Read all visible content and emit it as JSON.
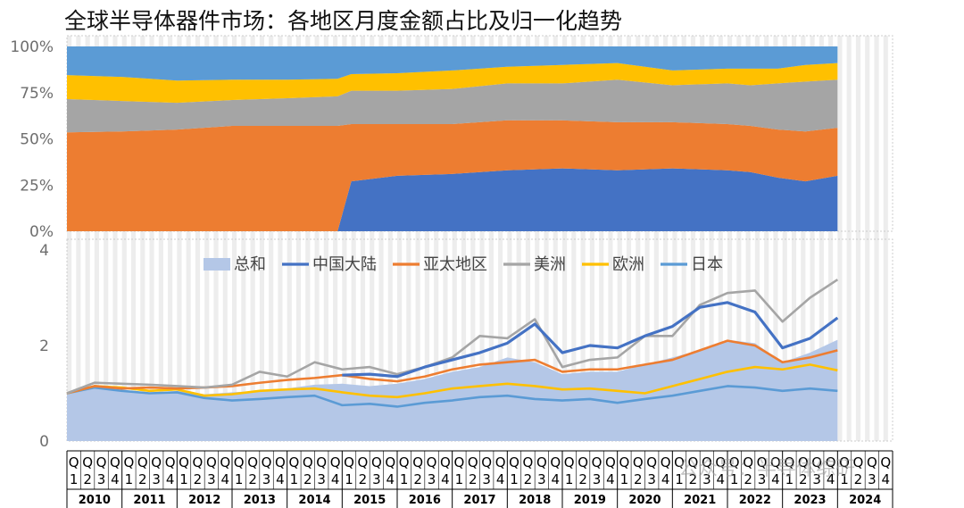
{
  "title": "全球半导体器件市场：各地区月度金额占比及归一化趋势",
  "watermark": "公众号：半导体综研",
  "colors": {
    "china": "#4472C4",
    "apac": "#ED7D31",
    "america": "#A5A5A5",
    "europe": "#FFC000",
    "japan": "#5B9BD5",
    "total": "#B4C7E7"
  },
  "chart_data": [
    {
      "type": "area",
      "subtype": "100% stacked area",
      "ylim": [
        0,
        1
      ],
      "yticks": [
        "0%",
        "25%",
        "50%",
        "75%",
        "100%"
      ],
      "grid": false,
      "x": [
        "2010-01",
        "2011-01",
        "2012-01",
        "2013-01",
        "2014-01",
        "2014-12",
        "2015-03",
        "2016-01",
        "2017-01",
        "2018-01",
        "2019-01",
        "2020-01",
        "2021-01",
        "2022-01",
        "2022-06",
        "2022-12",
        "2023-06",
        "2024-01"
      ],
      "series": [
        {
          "key": "china",
          "values": [
            0,
            0,
            0,
            0,
            0,
            0,
            0.27,
            0.3,
            0.31,
            0.33,
            0.34,
            0.33,
            0.34,
            0.33,
            0.32,
            0.29,
            0.27,
            0.3
          ]
        },
        {
          "key": "apac",
          "values": [
            0.535,
            0.54,
            0.55,
            0.57,
            0.57,
            0.57,
            0.31,
            0.28,
            0.27,
            0.27,
            0.26,
            0.26,
            0.25,
            0.25,
            0.25,
            0.26,
            0.27,
            0.26
          ]
        },
        {
          "key": "america",
          "values": [
            0.18,
            0.165,
            0.145,
            0.14,
            0.15,
            0.16,
            0.18,
            0.18,
            0.19,
            0.2,
            0.2,
            0.23,
            0.2,
            0.22,
            0.22,
            0.25,
            0.27,
            0.26
          ]
        },
        {
          "key": "europe",
          "values": [
            0.13,
            0.13,
            0.12,
            0.11,
            0.1,
            0.095,
            0.09,
            0.095,
            0.1,
            0.09,
            0.1,
            0.09,
            0.08,
            0.08,
            0.09,
            0.08,
            0.09,
            0.09
          ]
        },
        {
          "key": "japan",
          "values": [
            0.155,
            0.165,
            0.185,
            0.18,
            0.18,
            0.175,
            0.15,
            0.145,
            0.13,
            0.11,
            0.1,
            0.09,
            0.13,
            0.12,
            0.12,
            0.12,
            0.1,
            0.09
          ]
        }
      ]
    },
    {
      "type": "line",
      "subtype": "normalized trend (area for total)",
      "ylim": [
        0,
        4
      ],
      "yticks": [
        "0",
        "2",
        "4"
      ],
      "legend_position": "top",
      "legend": [
        "总和",
        "中国大陆",
        "亚太地区",
        "美洲",
        "欧洲",
        "日本"
      ],
      "x_quarter_labels": [
        "Q1",
        "Q2",
        "Q3",
        "Q4"
      ],
      "x_years": [
        "2010",
        "2011",
        "2012",
        "2013",
        "2014",
        "2015",
        "2016",
        "2017",
        "2018",
        "2019",
        "2020",
        "2021",
        "2022",
        "2023",
        "2024"
      ],
      "x": [
        "2010-01",
        "2010-07",
        "2011-01",
        "2011-07",
        "2012-01",
        "2012-07",
        "2013-01",
        "2013-07",
        "2014-01",
        "2014-07",
        "2015-01",
        "2015-07",
        "2016-01",
        "2016-07",
        "2017-01",
        "2017-07",
        "2018-01",
        "2018-07",
        "2019-01",
        "2019-07",
        "2020-01",
        "2020-07",
        "2021-01",
        "2021-07",
        "2022-01",
        "2022-07",
        "2023-01",
        "2023-07",
        "2024-01"
      ],
      "series": [
        {
          "key": "total",
          "name": "总和",
          "values": [
            1.0,
            1.15,
            1.05,
            1.0,
            1.05,
            0.98,
            1.02,
            1.05,
            1.1,
            1.18,
            1.2,
            1.15,
            1.2,
            1.3,
            1.45,
            1.55,
            1.75,
            1.65,
            1.4,
            1.45,
            1.45,
            1.6,
            1.75,
            1.9,
            2.12,
            2.05,
            1.65,
            1.85,
            2.12
          ]
        },
        {
          "key": "china",
          "name": "中国大陆",
          "values": [
            null,
            null,
            null,
            null,
            null,
            null,
            null,
            null,
            null,
            null,
            1.38,
            1.4,
            1.35,
            1.55,
            1.7,
            1.85,
            2.05,
            2.45,
            1.85,
            2.0,
            1.95,
            2.2,
            2.4,
            2.8,
            2.9,
            2.7,
            1.95,
            2.15,
            2.58
          ]
        },
        {
          "key": "apac",
          "name": "亚太地区",
          "values": [
            1.0,
            1.15,
            1.1,
            1.12,
            1.1,
            1.12,
            1.15,
            1.22,
            1.28,
            1.32,
            1.38,
            1.3,
            1.25,
            1.35,
            1.5,
            1.6,
            1.65,
            1.7,
            1.45,
            1.5,
            1.5,
            1.6,
            1.7,
            1.9,
            2.1,
            2.0,
            1.65,
            1.75,
            1.9
          ]
        },
        {
          "key": "america",
          "name": "美洲",
          "values": [
            1.0,
            1.22,
            1.2,
            1.18,
            1.15,
            1.12,
            1.18,
            1.45,
            1.35,
            1.65,
            1.5,
            1.55,
            1.4,
            1.55,
            1.75,
            2.2,
            2.15,
            2.55,
            1.55,
            1.7,
            1.75,
            2.2,
            2.2,
            2.85,
            3.1,
            3.15,
            2.5,
            3.0,
            3.38
          ]
        },
        {
          "key": "europe",
          "name": "欧洲",
          "values": [
            1.0,
            1.15,
            1.12,
            1.05,
            1.08,
            0.95,
            0.98,
            1.05,
            1.08,
            1.1,
            1.02,
            0.95,
            0.92,
            1.0,
            1.1,
            1.15,
            1.2,
            1.15,
            1.08,
            1.1,
            1.05,
            1.0,
            1.15,
            1.3,
            1.45,
            1.55,
            1.5,
            1.6,
            1.48
          ]
        },
        {
          "key": "japan",
          "name": "日本",
          "values": [
            1.0,
            1.12,
            1.05,
            1.0,
            1.02,
            0.9,
            0.85,
            0.88,
            0.92,
            0.95,
            0.75,
            0.78,
            0.72,
            0.8,
            0.85,
            0.92,
            0.95,
            0.88,
            0.85,
            0.88,
            0.8,
            0.88,
            0.95,
            1.05,
            1.15,
            1.12,
            1.05,
            1.1,
            1.05
          ]
        }
      ]
    }
  ]
}
